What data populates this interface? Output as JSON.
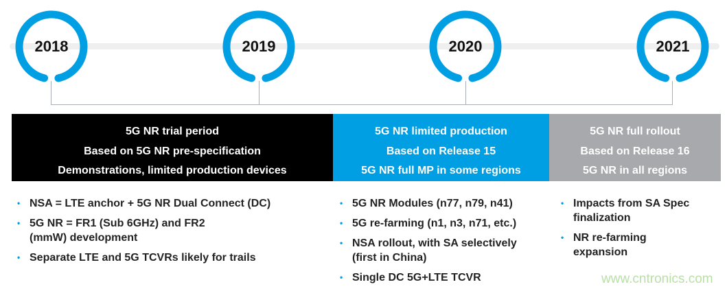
{
  "colors": {
    "accent": "#009fe3",
    "black_band": "#000000",
    "gray_band": "#a7a9ac"
  },
  "years": [
    "2018",
    "2019",
    "2020",
    "2021"
  ],
  "phases": [
    {
      "lines": [
        "5G NR trial period",
        "Based on 5G NR pre-specification",
        "Demonstrations, limited production devices"
      ],
      "bullets": [
        "NSA = LTE anchor + 5G NR Dual Connect (DC)",
        "5G NR = FR1 (Sub 6GHz) and FR2 (mmW) development",
        "Separate LTE and 5G TCVRs likely for trails"
      ]
    },
    {
      "lines": [
        "5G NR limited production",
        "Based on Release 15",
        "5G NR full MP in some regions"
      ],
      "bullets": [
        "5G NR Modules (n77, n79, n41)",
        "5G re-farming (n1, n3, n71, etc.)",
        "NSA rollout, with SA selectively (first in China)",
        "Single DC 5G+LTE TCVR"
      ]
    },
    {
      "lines": [
        "5G NR full rollout",
        "Based on Release 16",
        "5G NR in all regions"
      ],
      "bullets": [
        "Impacts from SA Spec finalization",
        "NR re-farming expansion"
      ]
    }
  ],
  "watermark": "www.cntronics.com"
}
